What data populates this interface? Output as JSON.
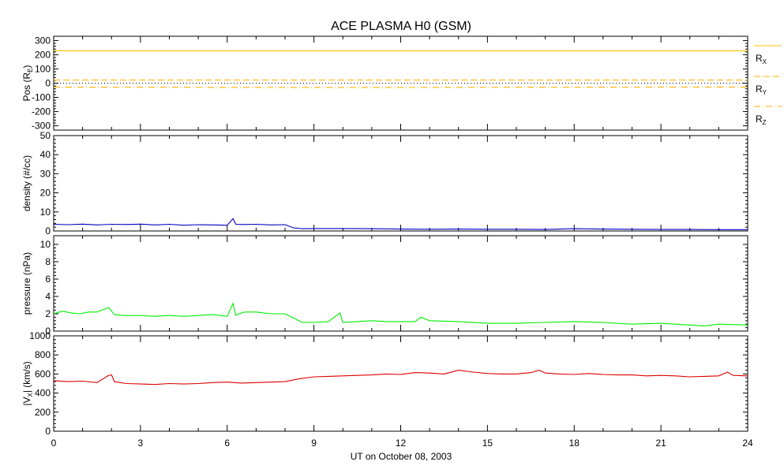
{
  "title": "ACE PLASMA H0 (GSM)",
  "colors": {
    "rx": "#ffc000",
    "ry": "#ffb000",
    "rz": "#ffb000",
    "density": "#0000c0",
    "pressure": "#00ee00",
    "vx": "#dd0000",
    "zero": "#000000"
  },
  "chart_data": {
    "type": "line",
    "x_label": "UT on October 08, 2003",
    "x_range": [
      0,
      24
    ],
    "x_ticks": [
      "0",
      "3",
      "6",
      "9",
      "12",
      "15",
      "18",
      "21",
      "24"
    ],
    "panels": [
      {
        "id": "pos",
        "ylabel_main": "Pos (R",
        "ylabel_sub": "E",
        "ylabel_tail": ")",
        "ylim": [
          -330,
          330
        ],
        "yticks": [
          "-300",
          "-200",
          "-100",
          "0",
          "100",
          "200",
          "300"
        ],
        "series": [
          {
            "name": "R",
            "sub": "X",
            "style": "solid",
            "x": [
              0,
              24
            ],
            "y": [
              228,
              228
            ]
          },
          {
            "name": "R",
            "sub": "Y",
            "style": "dashed",
            "x": [
              0,
              24
            ],
            "y": [
              22,
              22
            ]
          },
          {
            "name": "R",
            "sub": "Z",
            "style": "dashdot",
            "x": [
              0,
              4,
              8,
              12,
              16,
              20,
              24
            ],
            "y": [
              -28,
              -29,
              -30,
              -30,
              -29,
              -28,
              -27
            ]
          },
          {
            "name": "",
            "sub": "",
            "style": "dotted-zero",
            "x": [
              0,
              24
            ],
            "y": [
              0,
              0
            ]
          }
        ]
      },
      {
        "id": "density",
        "ylabel_main": "density (#/cc)",
        "ylim": [
          0,
          50
        ],
        "yticks": [
          "0",
          "10",
          "20",
          "30",
          "40",
          "50"
        ],
        "series": [
          {
            "x": [
              0,
              0.5,
              1,
              1.5,
              2,
              2.5,
              3,
              3.5,
              4,
              4.5,
              5,
              5.5,
              6,
              6.2,
              6.3,
              6.5,
              7,
              7.5,
              8,
              8.3,
              8.6,
              9,
              10,
              11,
              12,
              13,
              14,
              15,
              16,
              17,
              18,
              19,
              20,
              21,
              22,
              23,
              24
            ],
            "y": [
              3.5,
              3.3,
              3.6,
              3.2,
              3.5,
              3.4,
              3.6,
              3.2,
              3.5,
              3.0,
              3.3,
              3.2,
              3.0,
              6.5,
              3.5,
              3.4,
              3.5,
              3.2,
              3.3,
              1.6,
              1.2,
              1.3,
              1.3,
              1.2,
              1.0,
              0.9,
              1.0,
              0.9,
              0.9,
              0.8,
              1.2,
              1.0,
              0.9,
              0.8,
              0.8,
              0.7,
              0.7
            ]
          }
        ]
      },
      {
        "id": "pressure",
        "ylabel_main": "pressure (nPa)",
        "ylim": [
          0,
          11
        ],
        "yticks": [
          "0",
          "2",
          "4",
          "6",
          "8",
          "10"
        ],
        "series": [
          {
            "x": [
              0,
              0.3,
              0.6,
              0.9,
              1.2,
              1.5,
              1.8,
              1.9,
              2.1,
              2.4,
              3,
              3.5,
              4,
              4.5,
              5,
              5.5,
              6,
              6.2,
              6.3,
              6.4,
              6.6,
              7,
              7.5,
              8,
              8.3,
              8.6,
              9,
              9.5,
              9.9,
              10,
              10.5,
              11,
              11.5,
              12,
              12.5,
              12.7,
              13,
              14,
              15,
              16,
              17,
              18,
              19,
              20,
              21,
              22,
              22.5,
              23,
              24
            ],
            "y": [
              2.0,
              2.3,
              2.1,
              2.0,
              2.2,
              2.2,
              2.6,
              2.7,
              1.9,
              1.8,
              1.8,
              1.7,
              1.8,
              1.7,
              1.8,
              1.9,
              1.7,
              3.2,
              1.8,
              2.0,
              2.2,
              2.2,
              2.0,
              2.0,
              1.5,
              1.0,
              1.0,
              1.1,
              2.1,
              1.0,
              1.1,
              1.2,
              1.1,
              1.1,
              1.1,
              1.6,
              1.2,
              1.1,
              0.9,
              0.9,
              1.0,
              1.1,
              1.0,
              0.8,
              0.9,
              0.7,
              0.6,
              0.8,
              0.7
            ]
          }
        ]
      },
      {
        "id": "vx",
        "ylabel_main": "|V",
        "ylabel_sub": "X",
        "ylabel_tail": "| (km/s)",
        "ylim": [
          0,
          1000
        ],
        "yticks": [
          "0",
          "200",
          "400",
          "600",
          "800",
          "1000"
        ],
        "series": [
          {
            "x": [
              0,
              0.5,
              1,
              1.5,
              1.9,
              2.0,
              2.1,
              2.5,
              3,
              3.5,
              4,
              4.5,
              5,
              5.5,
              6,
              6.5,
              7,
              7.5,
              8,
              8.5,
              9,
              9.5,
              10,
              10.5,
              11,
              11.5,
              12,
              12.5,
              13,
              13.5,
              14,
              14.5,
              15,
              15.5,
              16,
              16.5,
              16.8,
              17,
              17.5,
              18,
              18.5,
              19,
              19.5,
              20,
              20.5,
              21,
              21.5,
              22,
              22.5,
              23,
              23.3,
              23.5,
              24
            ],
            "y": [
              530,
              520,
              525,
              510,
              585,
              590,
              520,
              500,
              495,
              490,
              500,
              495,
              500,
              510,
              515,
              505,
              510,
              515,
              520,
              550,
              570,
              575,
              580,
              585,
              590,
              600,
              595,
              615,
              610,
              600,
              640,
              620,
              605,
              600,
              600,
              615,
              640,
              610,
              600,
              595,
              605,
              595,
              590,
              590,
              580,
              585,
              580,
              570,
              575,
              580,
              620,
              585,
              580
            ]
          }
        ]
      }
    ]
  }
}
